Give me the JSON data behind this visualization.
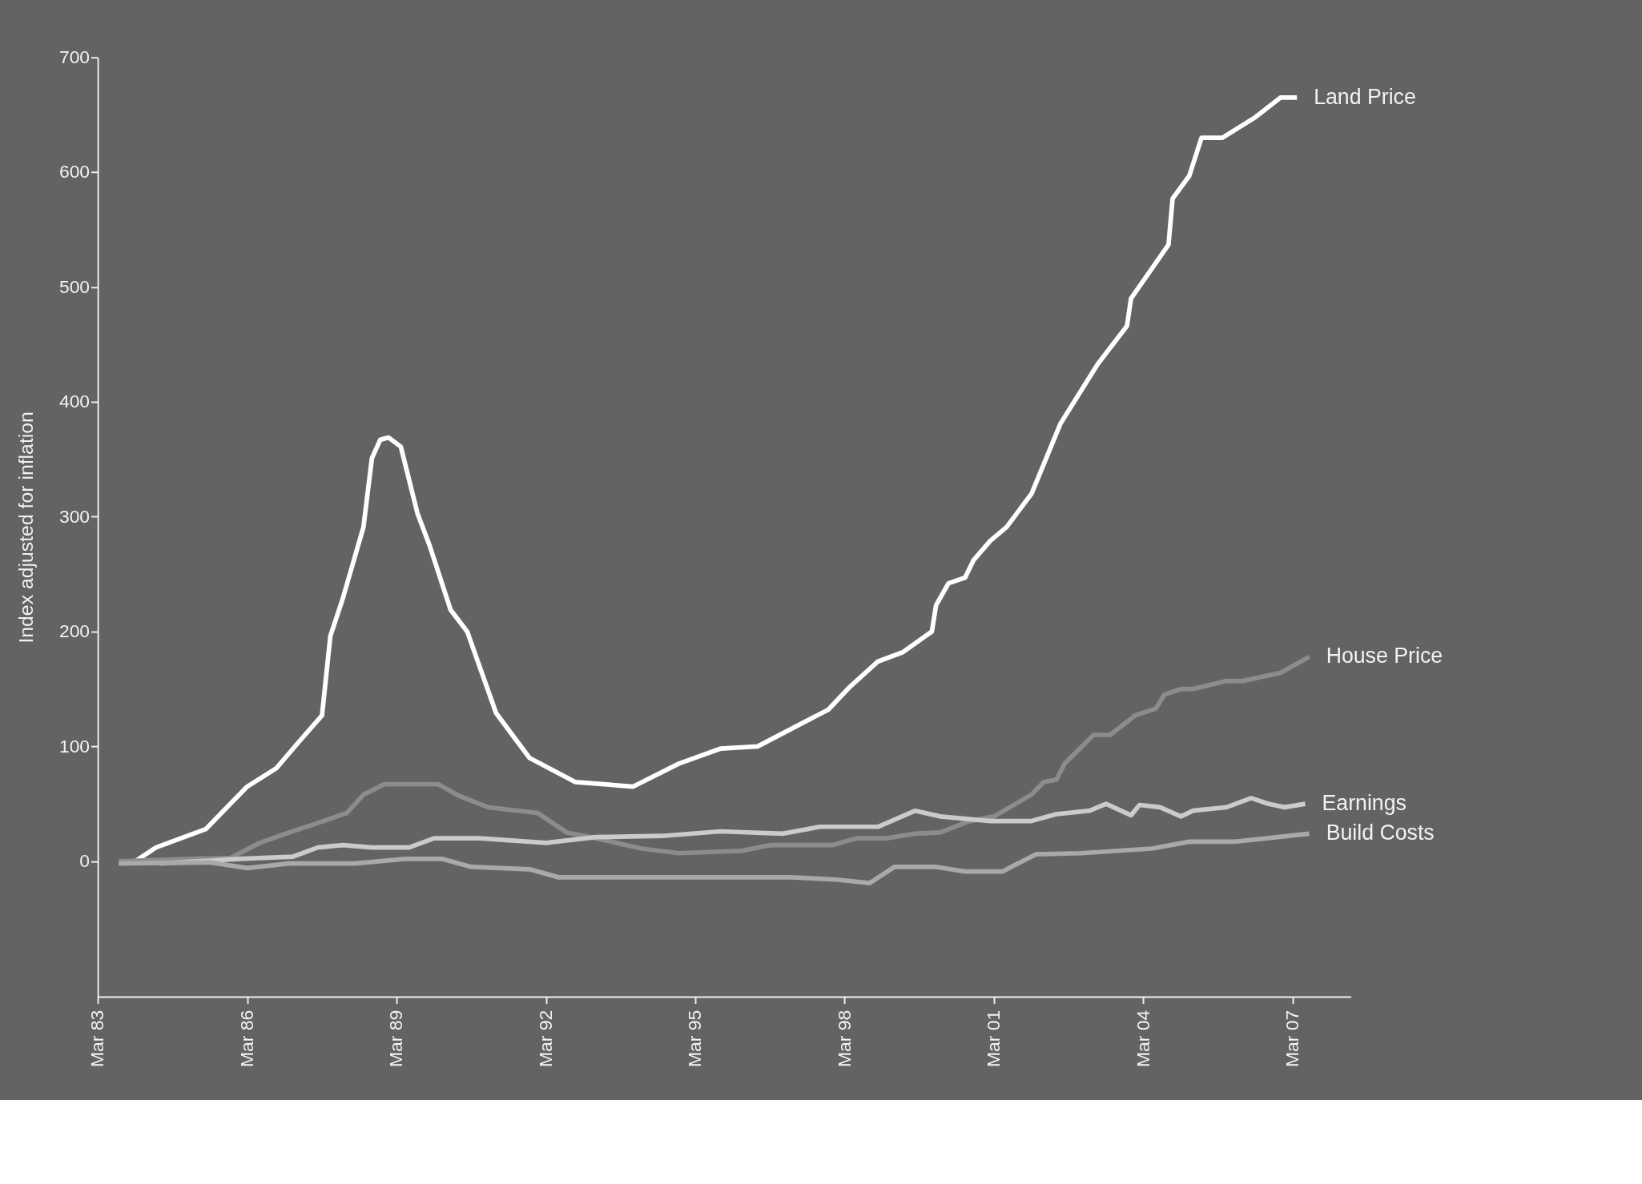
{
  "chart_data": {
    "type": "line",
    "ylabel": "Index adjusted for inflation",
    "ylim": [
      -118,
      700
    ],
    "yticks": [
      0,
      100,
      200,
      300,
      400,
      500,
      600,
      700
    ],
    "xlim": [
      "1983-03",
      "2008-05"
    ],
    "xticks": [
      {
        "value": "1983-03",
        "label": "Mar 83"
      },
      {
        "value": "1986-03",
        "label": "Mar 86"
      },
      {
        "value": "1989-03",
        "label": "Mar 89"
      },
      {
        "value": "1992-03",
        "label": "Mar 92"
      },
      {
        "value": "1995-03",
        "label": "Mar 95"
      },
      {
        "value": "1998-03",
        "label": "Mar 98"
      },
      {
        "value": "2001-03",
        "label": "Mar 01"
      },
      {
        "value": "2004-03",
        "label": "Mar 04"
      },
      {
        "value": "2007-03",
        "label": "Mar 07"
      }
    ],
    "grid": false,
    "legend": false,
    "marker": "none",
    "line_style": "solid",
    "series": [
      {
        "name": "Land Price",
        "color": "#ffffff",
        "x": [
          "1983-12",
          "1984-05",
          "1985-05",
          "1986-03",
          "1986-10",
          "1987-03",
          "1987-09",
          "1987-11",
          "1988-02",
          "1988-05",
          "1988-07",
          "1988-09",
          "1988-11",
          "1989-01",
          "1989-04",
          "1989-08",
          "1989-11",
          "1990-04",
          "1990-08",
          "1991-03",
          "1991-11",
          "1992-10",
          "1993-12",
          "1994-11",
          "1995-09",
          "1996-06",
          "1997-11",
          "1998-04",
          "1998-11",
          "1999-05",
          "1999-12",
          "2000-01",
          "2000-04",
          "2000-08",
          "2000-10",
          "2001-02",
          "2001-06",
          "2001-12",
          "2002-07",
          "2003-04",
          "2003-11",
          "2003-12",
          "2004-09",
          "2004-10",
          "2005-02",
          "2005-05",
          "2005-10",
          "2006-06",
          "2006-12",
          "2007-04"
        ],
        "values": [
          0,
          12,
          28,
          65,
          81,
          102,
          127,
          196,
          229,
          266,
          291,
          351,
          367,
          369,
          361,
          303,
          274,
          219,
          200,
          129,
          90,
          69,
          65,
          85,
          98,
          100,
          132,
          151,
          174,
          182,
          200,
          223,
          242,
          247,
          262,
          279,
          291,
          320,
          381,
          433,
          466,
          490,
          537,
          577,
          597,
          630,
          630,
          648,
          665,
          665
        ]
      },
      {
        "name": "House Price",
        "color": "#8c8c8c",
        "x": [
          "1983-08",
          "1985-11",
          "1986-06",
          "1987-01",
          "1987-07",
          "1988-03",
          "1988-07",
          "1988-12",
          "1990-01",
          "1990-06",
          "1991-01",
          "1992-01",
          "1992-08",
          "1993-03",
          "1994-02",
          "1994-11",
          "1996-02",
          "1996-09",
          "1997-12",
          "1998-06",
          "1999-01",
          "1999-08",
          "2000-02",
          "2000-09",
          "2001-03",
          "2001-12",
          "2002-03",
          "2002-06",
          "2002-08",
          "2003-03",
          "2003-07",
          "2004-01",
          "2004-06",
          "2004-08",
          "2004-12",
          "2005-03",
          "2005-11",
          "2006-03",
          "2006-12",
          "2007-07"
        ],
        "values": [
          0,
          3,
          16,
          25,
          32,
          42,
          58,
          67,
          67,
          57,
          47,
          42,
          25,
          20,
          11,
          7,
          9,
          14,
          14,
          20,
          20,
          24,
          25,
          35,
          39,
          58,
          69,
          71,
          85,
          110,
          110,
          127,
          133,
          145,
          150,
          150,
          157,
          157,
          164,
          178
        ]
      },
      {
        "name": "Earnings",
        "color": "#cbcbcb",
        "x": [
          "1984-06",
          "1986-01",
          "1987-02",
          "1987-08",
          "1988-02",
          "1988-09",
          "1989-06",
          "1989-12",
          "1990-11",
          "1992-03",
          "1993-03",
          "1994-07",
          "1995-09",
          "1996-12",
          "1997-09",
          "1998-11",
          "1999-08",
          "2000-02",
          "2001-02",
          "2001-12",
          "2002-06",
          "2003-02",
          "2003-06",
          "2003-12",
          "2004-02",
          "2004-07",
          "2004-12",
          "2005-03",
          "2005-11",
          "2006-05",
          "2006-09",
          "2007-01",
          "2007-06"
        ],
        "values": [
          -2,
          2,
          4,
          12,
          14,
          12,
          12,
          20,
          20,
          16,
          21,
          22,
          26,
          24,
          30,
          30,
          44,
          39,
          35,
          35,
          41,
          44,
          50,
          40,
          49,
          47,
          39,
          44,
          47,
          55,
          50,
          47,
          50
        ]
      },
      {
        "name": "Build Costs",
        "color": "#a9a9a9",
        "x": [
          "1983-08",
          "1985-06",
          "1986-03",
          "1987-01",
          "1988-05",
          "1989-05",
          "1990-02",
          "1990-09",
          "1991-11",
          "1992-06",
          "1994-02",
          "1997-02",
          "1998-01",
          "1998-09",
          "1999-03",
          "2000-01",
          "2000-08",
          "2001-05",
          "2002-01",
          "2002-12",
          "2004-05",
          "2005-02",
          "2006-01",
          "2007-07"
        ],
        "values": [
          -2,
          -1,
          -6,
          -2,
          -2,
          2,
          2,
          -5,
          -7,
          -14,
          -14,
          -14,
          -16,
          -19,
          -5,
          -5,
          -9,
          -9,
          6,
          7,
          11,
          17,
          17,
          24
        ]
      }
    ]
  }
}
